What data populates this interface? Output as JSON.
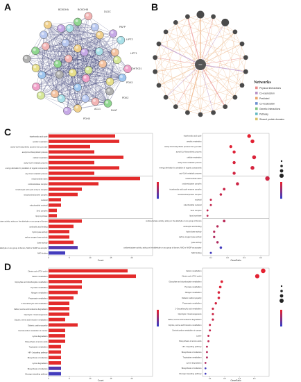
{
  "panels": {
    "a": "A",
    "b": "B",
    "c": "C",
    "d": "D"
  },
  "panel_a": {
    "labels": [
      "BCKDHA",
      "BCKDHB",
      "DLDC",
      "PAFP",
      "LIPT2",
      "LIPT1",
      "DHTKD1",
      "PDK3",
      "PDK2",
      "DLAT",
      "PDHX",
      "ACL1"
    ]
  },
  "panel_b": {
    "center_node": "DLD",
    "legend_title": "Networks",
    "legend": [
      {
        "label": "Physical Interactions",
        "color": "#e88a8a"
      },
      {
        "label": "Co-expression",
        "color": "#b68fc4"
      },
      {
        "label": "Predicted",
        "color": "#e9a36b"
      },
      {
        "label": "Co-localization",
        "color": "#6b8fd0"
      },
      {
        "label": "Genetic Interactions",
        "color": "#7fc47f"
      },
      {
        "label": "Pathway",
        "color": "#62b8c2"
      },
      {
        "label": "Shared protein domains",
        "color": "#d8c26a"
      }
    ]
  },
  "chart_data": [
    {
      "type": "bar",
      "panel": "C-left",
      "facets": [
        "BP",
        "CC",
        "MF"
      ],
      "xlabel": "Count",
      "categories": [
        "tricarboxylic acid cycle",
        "aerobic respiration",
        "acetyl-CoA biosynthetic process from pyruvate",
        "acetyl-CoA biosynthetic process",
        "cellular respiration",
        "acetyl-CoA metabolic process",
        "energy derivation by oxidation of organic compounds",
        "acyl-CoA metabolic process",
        "mitochondrial matrix",
        "oxidoreductase complex",
        "tricarboxylic acid cycle enzyme complex",
        "mitochondrial protein complex",
        "nucleoid",
        "mitochondrial nucleoid",
        "Ser1 complex",
        "lipoyl synthase",
        "oxidoreductase activity, acting on the aldehyde or oxo group of donors",
        "carboxylic acid binding",
        "hydro-lyase activity",
        "carbon-oxygen lyase activity",
        "lyase activity",
        "oxidoreductase activity, acting on the aldehyde or oxo group of donors, NAD or NADP as acceptor",
        "NAD binding"
      ],
      "values": [
        16,
        17,
        10,
        11,
        18,
        11,
        17,
        11,
        22,
        12,
        8,
        7,
        3,
        3,
        2,
        2,
        8,
        6,
        5,
        5,
        6,
        7,
        4
      ]
    },
    {
      "type": "scatter",
      "panel": "C-right",
      "xlabel": "GeneRatio",
      "ylabel": "",
      "y": [
        "tricarboxylic acid cycle",
        "aerobic respiration",
        "acetyl-CoA biosynthetic process from pyruvate",
        "acetyl-CoA biosynthetic process",
        "cellular respiration",
        "acetyl-CoA metabolic process",
        "energy derivation by oxidation of organic compounds",
        "acyl-CoA metabolic process",
        "mitochondrial matrix",
        "oxidoreductase complex",
        "tricarboxylic acid cycle enzyme complex",
        "mitochondrial protein complex",
        "nucleoid",
        "mitochondrial nucleoid",
        "Ser1 complex",
        "lipoyl synthase",
        "oxidoreductase activity, acting on the aldehyde or oxo group of donors",
        "carboxylic acid binding",
        "hydro-lyase activity",
        "carbon-oxygen lyase activity",
        "lyase activity",
        "oxidoreductase activity, acting on the aldehyde or oxo group of donors, NAD or NADP as acceptor",
        "NAD binding"
      ],
      "x": [
        0.33,
        0.35,
        0.22,
        0.24,
        0.36,
        0.24,
        0.35,
        0.24,
        0.44,
        0.26,
        0.18,
        0.16,
        0.1,
        0.1,
        0.08,
        0.08,
        0.18,
        0.14,
        0.12,
        0.12,
        0.14,
        0.16,
        0.1
      ]
    },
    {
      "type": "bar",
      "panel": "D-left",
      "xlabel": "Count",
      "categories": [
        "Citrate cycle (TCA cycle)",
        "Carbon metabolism",
        "Glyoxylate and dicarboxylate metabolism",
        "Pyruvate metabolism",
        "Nitrogen metabolism",
        "Propanoate metabolism",
        "2-Oxocarboxylic acid metabolism",
        "Valine, leucine and isoleucine degradation",
        "Glycolysis / Gluconeogenesis",
        "Glycine, serine and threonine metabolism",
        "Diabetic cardiomyopathy",
        "Central carbon metabolism in cancer",
        "Lysine degradation",
        "Biosynthesis of amino acids",
        "Tryptophan metabolism",
        "HIF-1 signaling pathway",
        "Biosynthesis of cofactors",
        "Lysine degradation",
        "Biosynthesis of cofactors",
        "Glucagon signaling pathway"
      ],
      "values": [
        19,
        21,
        8,
        8,
        7,
        6,
        5,
        5,
        5,
        4,
        7,
        4,
        4,
        4,
        3,
        3,
        3,
        3,
        3,
        3
      ]
    },
    {
      "type": "scatter",
      "panel": "D-right",
      "xlabel": "GeneRatio",
      "ylabel": "",
      "y": [
        "Carbon metabolism",
        "Citrate cycle (TCA cycle)",
        "Glyoxylate and dicarboxylate metabolism",
        "Pyruvate metabolism",
        "Nitrogen metabolism",
        "Diabetic cardiomyopathy",
        "Propanoate metabolism",
        "2-Oxocarboxylic acid metabolism",
        "Glycolysis / Gluconeogenesis",
        "Valine, leucine and isoleucine degradation",
        "Glycine, serine and threonine metabolism",
        "Central carbon metabolism in cancer",
        "Lysine",
        "Biosynthesis of amino acids",
        "HIF-1 signaling pathway",
        "Biosynthesis of cofactors",
        "Tryptophan metabolism",
        "Lysine degradation",
        "Biosynthesis of cofactors",
        "Glucagon signaling pathway"
      ],
      "x": [
        0.46,
        0.42,
        0.18,
        0.17,
        0.16,
        0.16,
        0.14,
        0.12,
        0.12,
        0.12,
        0.1,
        0.1,
        0.09,
        0.09,
        0.08,
        0.08,
        0.08,
        0.07,
        0.07,
        0.07
      ]
    }
  ]
}
